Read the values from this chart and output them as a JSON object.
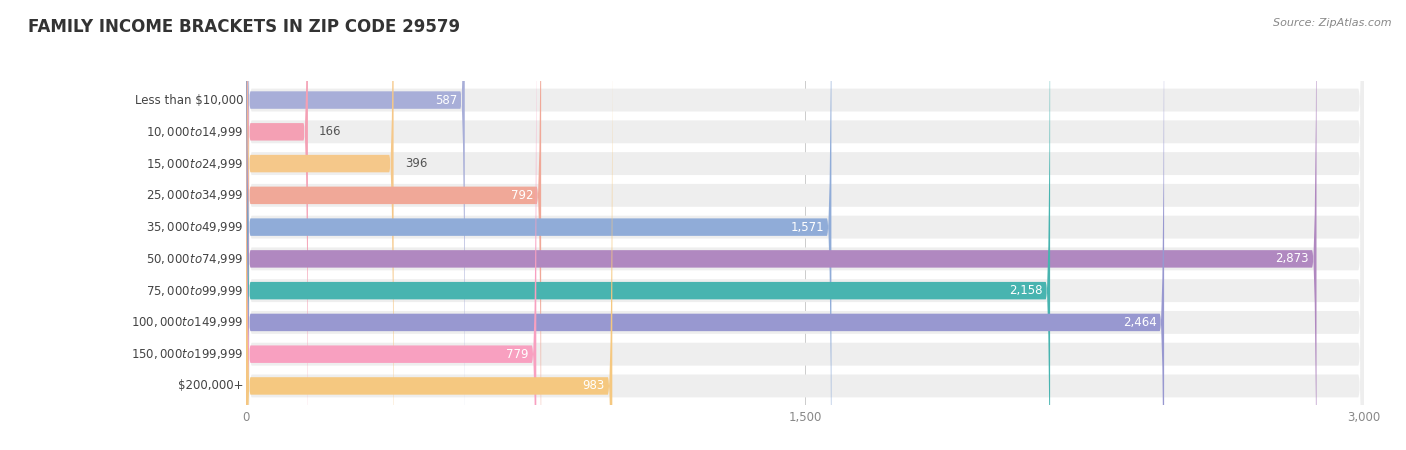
{
  "title": "FAMILY INCOME BRACKETS IN ZIP CODE 29579",
  "source": "Source: ZipAtlas.com",
  "categories": [
    "Less than $10,000",
    "$10,000 to $14,999",
    "$15,000 to $24,999",
    "$25,000 to $34,999",
    "$35,000 to $49,999",
    "$50,000 to $74,999",
    "$75,000 to $99,999",
    "$100,000 to $149,999",
    "$150,000 to $199,999",
    "$200,000+"
  ],
  "values": [
    587,
    166,
    396,
    792,
    1571,
    2873,
    2158,
    2464,
    779,
    983
  ],
  "bar_colors": [
    "#a8aed8",
    "#f4a0b4",
    "#f5c88a",
    "#f0a898",
    "#90acd8",
    "#b088c0",
    "#48b4b0",
    "#9898d0",
    "#f8a0c0",
    "#f5c880"
  ],
  "bar_bg_color": "#eeeeee",
  "xlim": [
    0,
    3000
  ],
  "xticks": [
    0,
    1500,
    3000
  ],
  "xtick_labels": [
    "0",
    "1,500",
    "3,000"
  ],
  "title_fontsize": 12,
  "label_fontsize": 8.5,
  "value_fontsize": 8.5,
  "background_color": "#ffffff",
  "bar_height": 0.55,
  "bg_bar_height": 0.72,
  "inside_label_threshold": 500,
  "inside_label_color": "white",
  "outside_label_color": "#555555"
}
